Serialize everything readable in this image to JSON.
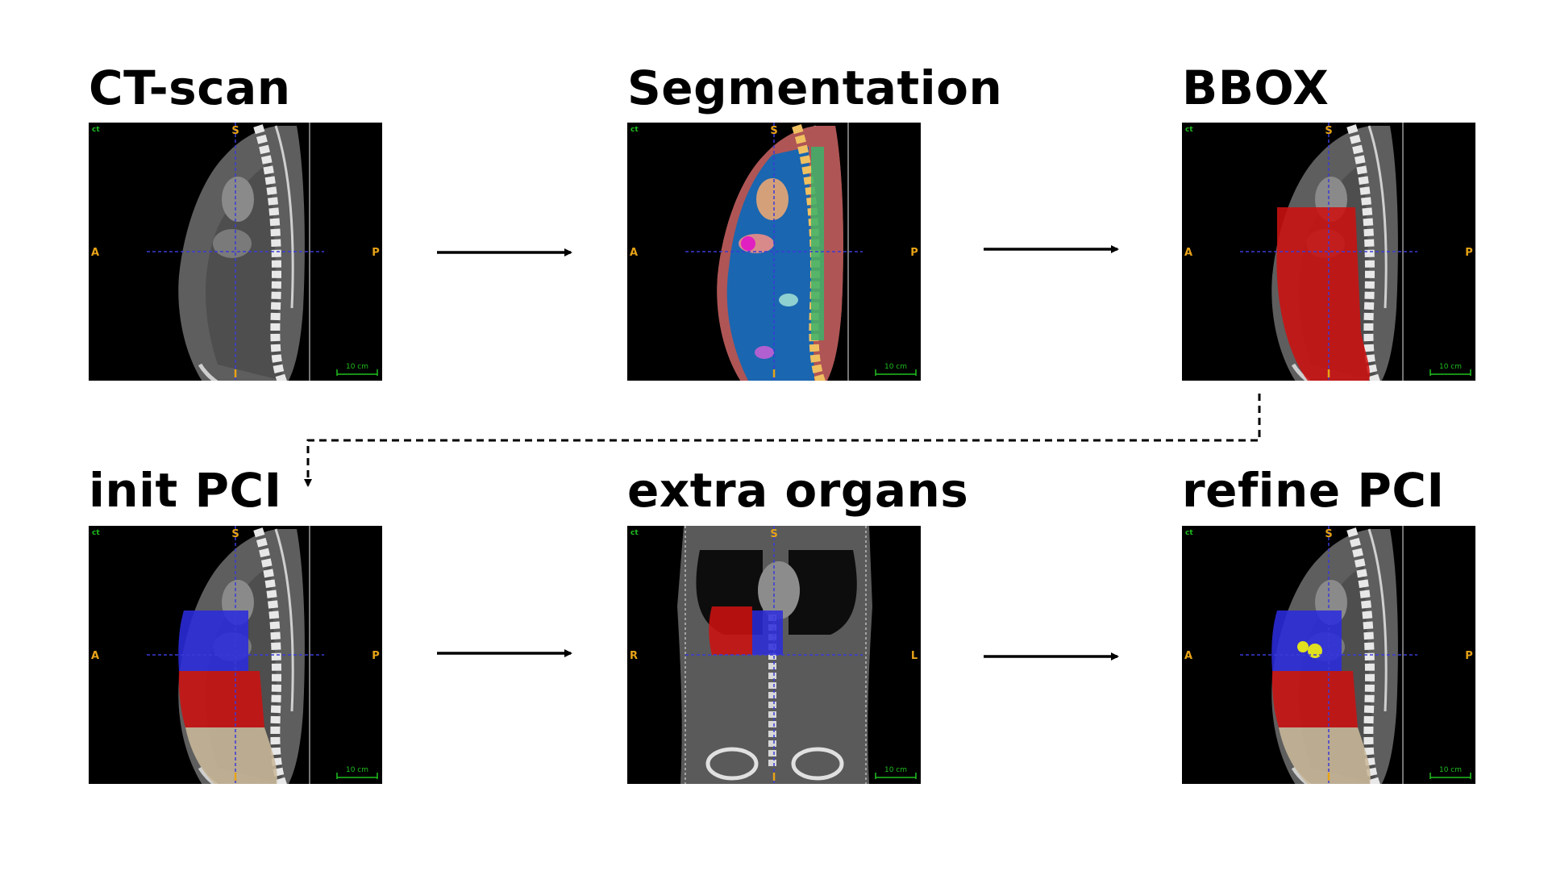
{
  "stages": [
    {
      "id": "ct-scan",
      "title": "CT-scan",
      "view": "sagittal",
      "overlay": "none",
      "viewer": {
        "corner": "ct",
        "top": "S",
        "bottom": "I",
        "left": "A",
        "right": "P",
        "scale": "10 cm"
      }
    },
    {
      "id": "segmentation",
      "title": "Segmentation",
      "view": "sagittal",
      "overlay": "multi-organ",
      "viewer": {
        "corner": "ct",
        "top": "S",
        "bottom": "I",
        "left": "A",
        "right": "P",
        "scale": "10 cm"
      }
    },
    {
      "id": "bbox",
      "title": "BBOX",
      "view": "sagittal",
      "overlay": "single-region",
      "viewer": {
        "corner": "ct",
        "top": "S",
        "bottom": "I",
        "left": "A",
        "right": "P",
        "scale": "10 cm"
      }
    },
    {
      "id": "init-pci",
      "title": "init PCI",
      "view": "sagittal",
      "overlay": "three-regions",
      "viewer": {
        "corner": "ct",
        "top": "S",
        "bottom": "I",
        "left": "A",
        "right": "P",
        "scale": "10 cm"
      }
    },
    {
      "id": "extra-organs",
      "title": "extra organs",
      "view": "coronal",
      "overlay": "two-organs",
      "viewer": {
        "corner": "ct",
        "top": "S",
        "bottom": "I",
        "left": "R",
        "right": "L",
        "scale": "10 cm"
      }
    },
    {
      "id": "refine-pci",
      "title": "refine PCI",
      "view": "sagittal",
      "overlay": "refined-regions",
      "viewer": {
        "corner": "ct",
        "top": "S",
        "bottom": "I",
        "left": "A",
        "right": "P",
        "scale": "10 cm"
      }
    }
  ],
  "colors": {
    "label": "#e8a317",
    "corner": "#1fbf1f",
    "crosshair": "#3a3ad8",
    "region_red": "#cc1111",
    "region_blue": "#2b2bdd",
    "region_beige": "#c9b89b",
    "highlight_yellow": "#e0e020",
    "segmentation_body": "#b05555",
    "segmentation_cavity": "#1a66b0"
  },
  "connectors": [
    {
      "from": "ct-scan",
      "to": "segmentation",
      "style": "solid"
    },
    {
      "from": "segmentation",
      "to": "bbox",
      "style": "solid"
    },
    {
      "from": "bbox",
      "to": "init-pci",
      "style": "dashed"
    },
    {
      "from": "init-pci",
      "to": "extra-organs",
      "style": "solid"
    },
    {
      "from": "extra-organs",
      "to": "refine-pci",
      "style": "solid"
    }
  ]
}
